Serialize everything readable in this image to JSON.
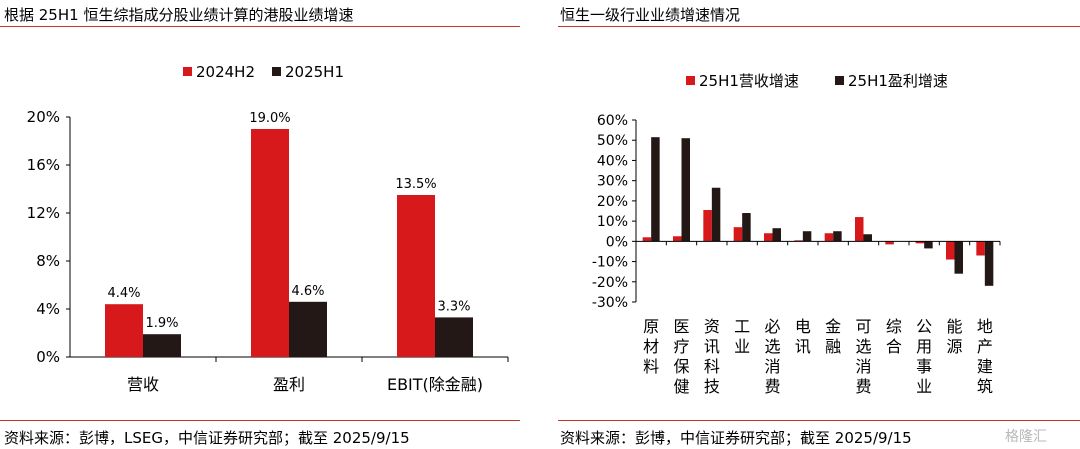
{
  "left": {
    "title": "根据 25H1 恒生综指成分股业绩计算的港股业绩增速",
    "source": "资料来源：彭博，LSEG，中信证券研究部；截至 2025/9/15"
  },
  "right": {
    "title": "恒生一级行业业绩增速情况",
    "source": "资料来源：彭博，中信证券研究部；截至 2025/9/15"
  },
  "watermark": "格隆汇",
  "colors": {
    "red": "#d7191c",
    "dark": "#231815",
    "rule": "#c0392b"
  },
  "chart_data": [
    {
      "type": "bar",
      "categories": [
        "营收",
        "盈利",
        "EBIT(除金融)"
      ],
      "series": [
        {
          "name": "2024H2",
          "color": "#d7191c",
          "values": [
            4.4,
            19.0,
            13.5
          ],
          "labels": [
            "4.4%",
            "19.0%",
            "13.5%"
          ]
        },
        {
          "name": "2025H1",
          "color": "#231815",
          "values": [
            1.9,
            4.6,
            3.3
          ],
          "labels": [
            "1.9%",
            "4.6%",
            "3.3%"
          ]
        }
      ],
      "ylim": [
        0,
        20
      ],
      "yticks": [
        0,
        4,
        8,
        12,
        16,
        20
      ],
      "ytick_labels": [
        "0%",
        "4%",
        "8%",
        "12%",
        "16%",
        "20%"
      ],
      "legend": "top",
      "grid": false
    },
    {
      "type": "bar",
      "categories": [
        "原材料",
        "医疗保健",
        "资讯科技",
        "工业",
        "必选消费",
        "电讯",
        "金融",
        "可选消费",
        "综合",
        "公用事业",
        "能源",
        "地产建筑"
      ],
      "series": [
        {
          "name": "25H1营收增速",
          "color": "#d7191c",
          "values": [
            2,
            2.5,
            15.5,
            7,
            4,
            0.5,
            4,
            12,
            -1.5,
            -1,
            -9,
            -7
          ]
        },
        {
          "name": "25H1盈利增速",
          "color": "#231815",
          "values": [
            51.5,
            51,
            26.5,
            14,
            6.5,
            5,
            5,
            3.5,
            0,
            -3.5,
            -16,
            -22
          ]
        }
      ],
      "ylim": [
        -30,
        60
      ],
      "yticks": [
        -30,
        -20,
        -10,
        0,
        10,
        20,
        30,
        40,
        50,
        60
      ],
      "ytick_labels": [
        "-30%",
        "-20%",
        "-10%",
        "0%",
        "10%",
        "20%",
        "30%",
        "40%",
        "50%",
        "60%"
      ],
      "legend": "top",
      "grid": false
    }
  ]
}
